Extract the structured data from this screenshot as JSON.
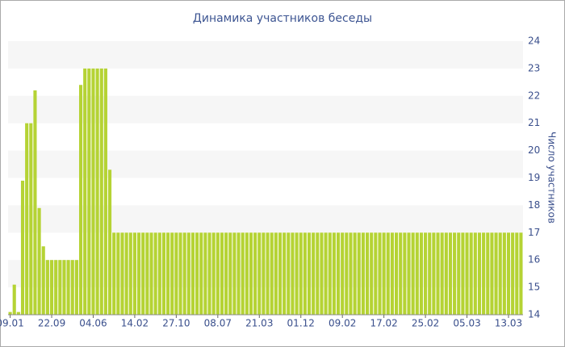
{
  "chart_data": {
    "type": "bar",
    "title": "Динамика участников беседы",
    "y_label": "Число участников",
    "categories": [
      "09.01",
      null,
      null,
      null,
      null,
      null,
      null,
      null,
      null,
      null,
      "22.09",
      null,
      null,
      null,
      null,
      null,
      null,
      null,
      null,
      null,
      "04.06",
      null,
      null,
      null,
      null,
      null,
      null,
      null,
      null,
      null,
      "14.02",
      null,
      null,
      null,
      null,
      null,
      null,
      null,
      null,
      null,
      "27.10",
      null,
      null,
      null,
      null,
      null,
      null,
      null,
      null,
      null,
      "08.07",
      null,
      null,
      null,
      null,
      null,
      null,
      null,
      null,
      null,
      "21.03",
      null,
      null,
      null,
      null,
      null,
      null,
      null,
      null,
      null,
      "01.12",
      null,
      null,
      null,
      null,
      null,
      null,
      null,
      null,
      null,
      "09.02",
      null,
      null,
      null,
      null,
      null,
      null,
      null,
      null,
      null,
      "17.02",
      null,
      null,
      null,
      null,
      null,
      null,
      null,
      null,
      null,
      "25.02",
      null,
      null,
      null,
      null,
      null,
      null,
      null,
      null,
      null,
      "05.03",
      null,
      null,
      null,
      null,
      null,
      null,
      null,
      null,
      null,
      "13.03",
      null,
      null,
      null
    ],
    "values": [
      14.1,
      15.1,
      14.1,
      18.9,
      21,
      21,
      22.2,
      17.9,
      16.5,
      16,
      16,
      16,
      16,
      16,
      16,
      16,
      16,
      22.4,
      23,
      23,
      23,
      23,
      23,
      23,
      19.3,
      17,
      17,
      17,
      17,
      17,
      17,
      17,
      17,
      17,
      17,
      17,
      17,
      17,
      17,
      17,
      17,
      17,
      17,
      17,
      17,
      17,
      17,
      17,
      17,
      17,
      17,
      17,
      17,
      17,
      17,
      17,
      17,
      17,
      17,
      17,
      17,
      17,
      17,
      17,
      17,
      17,
      17,
      17,
      17,
      17,
      17,
      17,
      17,
      17,
      17,
      17,
      17,
      17,
      17,
      17,
      17,
      17,
      17,
      17,
      17,
      17,
      17,
      17,
      17,
      17,
      17,
      17,
      17,
      17,
      17,
      17,
      17,
      17,
      17,
      17,
      17,
      17,
      17,
      17,
      17,
      17,
      17,
      17,
      17,
      17,
      17,
      17,
      17,
      17,
      17,
      17,
      17,
      17,
      17,
      17,
      17,
      17,
      17,
      17
    ],
    "color": "#b5d334",
    "ylim": [
      14,
      24
    ],
    "yticks": [
      14,
      15,
      16,
      17,
      18,
      19,
      20,
      21,
      22,
      23,
      24
    ],
    "grid": "bands"
  }
}
